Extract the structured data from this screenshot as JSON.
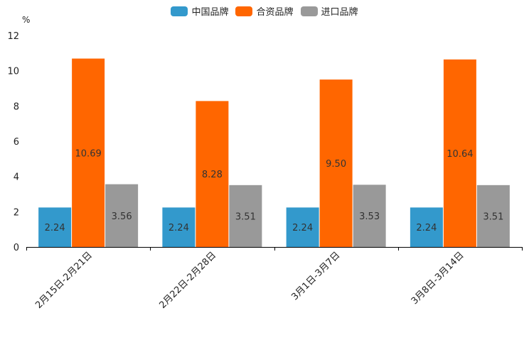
{
  "chart_data": {
    "type": "bar",
    "unit": "%",
    "categories": [
      "2月15日-2月21日",
      "2月22日-2月28日",
      "3月1日-3月7日",
      "3月8日-3月14日"
    ],
    "series": [
      {
        "name": "中国品牌",
        "color": "#3399cc",
        "values": [
          2.24,
          2.24,
          2.24,
          2.24
        ],
        "labels": [
          "2.24",
          "2.24",
          "2.24",
          "2.24"
        ]
      },
      {
        "name": "合资品牌",
        "color": "#ff6600",
        "values": [
          10.69,
          8.28,
          9.5,
          10.64
        ],
        "labels": [
          "10.69",
          "8.28",
          "9.50",
          "10.64"
        ]
      },
      {
        "name": "进口品牌",
        "color": "#999999",
        "values": [
          3.56,
          3.51,
          3.53,
          3.51
        ],
        "labels": [
          "3.56",
          "3.51",
          "3.53",
          "3.51"
        ]
      }
    ],
    "yticks": [
      "0",
      "2",
      "4",
      "6",
      "8",
      "10",
      "12"
    ],
    "ylim": [
      0,
      12
    ],
    "legend_position": "top-center"
  }
}
